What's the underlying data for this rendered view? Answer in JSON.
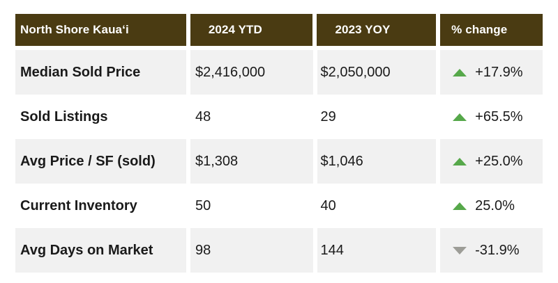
{
  "header": {
    "region": "North Shore Kaua‘i",
    "col_2024": "2024 YTD",
    "col_2023": "2023 YOY",
    "col_change": "% change",
    "color": "#4a3b12"
  },
  "rows": [
    {
      "label": "Median Sold Price",
      "v2024": "$2,416,000",
      "v2023": "$2,050,000",
      "change": "+17.9%",
      "direction": "up"
    },
    {
      "label": "Sold Listings",
      "v2024": "48",
      "v2023": "29",
      "change": "+65.5%",
      "direction": "up"
    },
    {
      "label": "Avg Price / SF (sold)",
      "v2024": "$1,308",
      "v2023": "$1,046",
      "change": "+25.0%",
      "direction": "up"
    },
    {
      "label": "Current Inventory",
      "v2024": "50",
      "v2023": "40",
      "change": "25.0%",
      "direction": "up"
    },
    {
      "label": "Avg Days on Market",
      "v2024": "98",
      "v2023": "144",
      "change": "-31.9%",
      "direction": "down"
    }
  ],
  "colors": {
    "up_arrow": "#56a84a",
    "down_arrow": "#9d9d97",
    "shaded_row": "#f1f1f1"
  }
}
